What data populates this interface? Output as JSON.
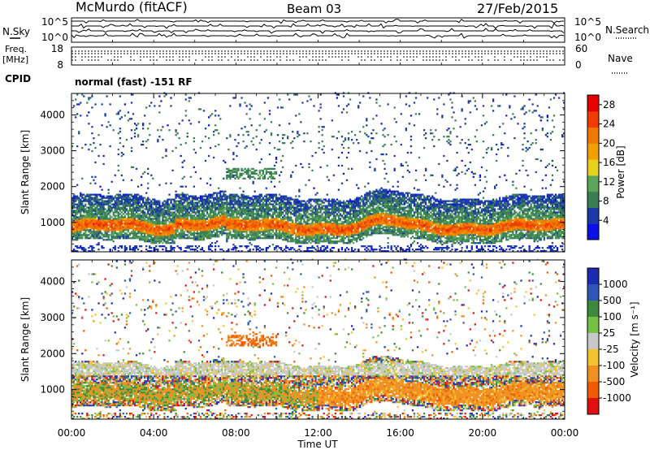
{
  "header": {
    "station": "McMurdo (fitACF)",
    "beam": "Beam 03",
    "date": "27/Feb/2015"
  },
  "top_panels": {
    "nsky_label": "N.Sky",
    "nsky_ticks": [
      "10^5",
      "10^0"
    ],
    "nsearch_label": "N.Search",
    "nsearch_ticks": [
      "10^5",
      "10^0"
    ],
    "freq_label_1": "Freq.",
    "freq_label_2": "[MHz]",
    "freq_ticks": [
      "18",
      "8"
    ],
    "nave_label": "Nave",
    "nave_ticks": [
      "60",
      "0"
    ],
    "cpid_label": "CPID",
    "cpid_text": "normal (fast) -151 RF"
  },
  "chart_data": [
    {
      "type": "heatmap",
      "name": "power",
      "ylabel": "Slant Range [km]",
      "y_ticks": [
        "1000",
        "2000",
        "3000",
        "4000"
      ],
      "ylim": [
        180,
        4600
      ],
      "xlim": [
        0,
        24
      ],
      "x_ticks": [
        "00:00",
        "04:00",
        "08:00",
        "12:00",
        "16:00",
        "20:00",
        "00:00"
      ],
      "colorbar": {
        "label": "Power [dB]",
        "ticks": [
          "4",
          "8",
          "12",
          "16",
          "20",
          "24",
          "28"
        ],
        "range": [
          0,
          30
        ],
        "colors": [
          "#0a10e6",
          "#1b3aa8",
          "#3a7f54",
          "#5aa55a",
          "#e8d21e",
          "#f0a000",
          "#f07800",
          "#f03c00",
          "#e60000"
        ]
      }
    },
    {
      "type": "heatmap",
      "name": "velocity",
      "ylabel": "Slant Range [km]",
      "xlabel": "Time UT",
      "y_ticks": [
        "1000",
        "2000",
        "3000",
        "4000"
      ],
      "ylim": [
        180,
        4600
      ],
      "xlim": [
        0,
        24
      ],
      "x_ticks": [
        "00:00",
        "04:00",
        "08:00",
        "12:00",
        "16:00",
        "20:00",
        "00:00"
      ],
      "colorbar": {
        "label": "Velocity [m s⁻¹]",
        "ticks": [
          "1000",
          "500",
          "100",
          "25",
          "-25",
          "-100",
          "-500",
          "-1000"
        ],
        "colors": [
          "#1c2ab4",
          "#2e56b8",
          "#3d8a3d",
          "#76c043",
          "#c8c8c8",
          "#f4c430",
          "#f09020",
          "#f05a00",
          "#e01010"
        ]
      }
    }
  ]
}
